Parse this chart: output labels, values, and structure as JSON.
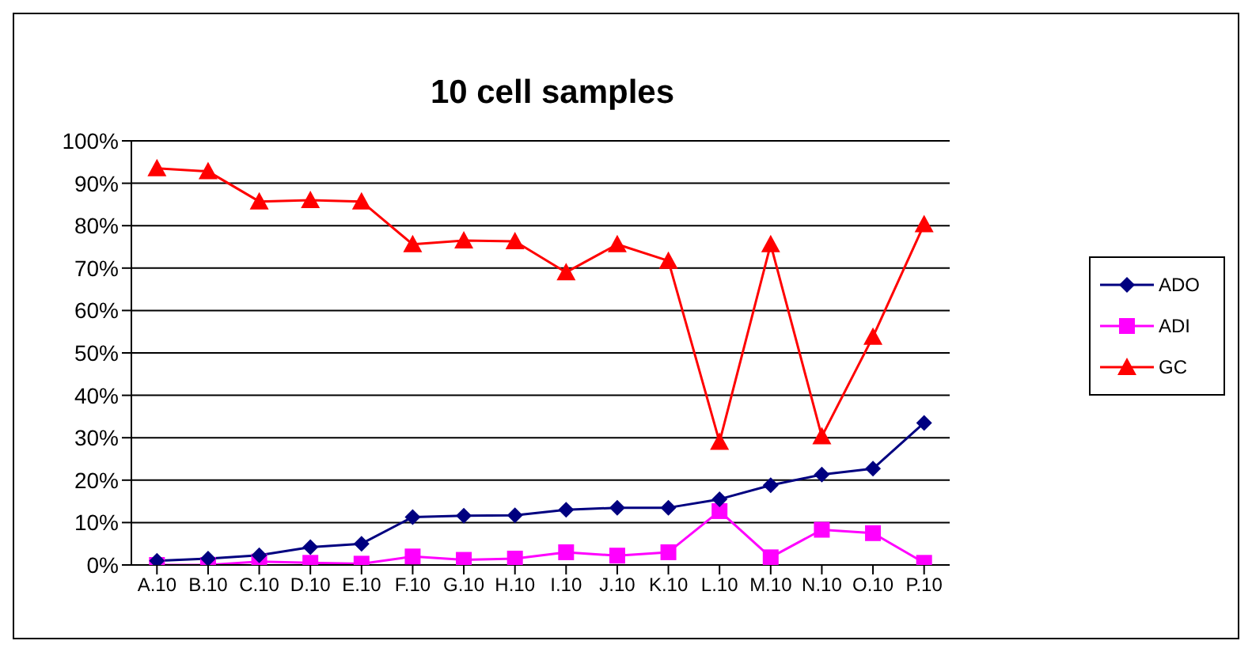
{
  "chart_data": {
    "type": "line",
    "title": "10 cell samples",
    "categories": [
      "A.10",
      "B.10",
      "C.10",
      "D.10",
      "E.10",
      "F.10",
      "G.10",
      "H.10",
      "I.10",
      "J.10",
      "K.10",
      "L.10",
      "M.10",
      "N.10",
      "O.10",
      "P.10"
    ],
    "series": [
      {
        "name": "ADO",
        "color": "#000080",
        "marker": "diamond",
        "values": [
          1,
          1.5,
          2.3,
          4.2,
          5,
          11.3,
          11.6,
          11.7,
          13,
          13.5,
          13.5,
          15.5,
          18.8,
          21.3,
          22.7,
          33.5
        ]
      },
      {
        "name": "ADI",
        "color": "#ff00ff",
        "marker": "square",
        "values": [
          0,
          0,
          0.8,
          0.5,
          0.3,
          2,
          1.2,
          1.5,
          3,
          2.2,
          3,
          12.7,
          1.8,
          8.3,
          7.5,
          0.5
        ]
      },
      {
        "name": "GC",
        "color": "#ff0000",
        "marker": "triangle",
        "values": [
          93.5,
          92.8,
          85.7,
          86,
          85.7,
          75.6,
          76.5,
          76.3,
          69,
          75.6,
          71.7,
          29,
          75.6,
          30.3,
          53.8,
          80.3
        ]
      }
    ],
    "ylim": [
      0,
      100
    ],
    "yticks": [
      {
        "value": 0,
        "label": "0%"
      },
      {
        "value": 10,
        "label": "10%"
      },
      {
        "value": 20,
        "label": "20%"
      },
      {
        "value": 30,
        "label": "30%"
      },
      {
        "value": 40,
        "label": "40%"
      },
      {
        "value": 50,
        "label": "50%"
      },
      {
        "value": 60,
        "label": "60%"
      },
      {
        "value": 70,
        "label": "70%"
      },
      {
        "value": 80,
        "label": "80%"
      },
      {
        "value": 90,
        "label": "90%"
      },
      {
        "value": 100,
        "label": "100%"
      }
    ],
    "grid": "y",
    "legend": "right",
    "line_style": "solid"
  }
}
